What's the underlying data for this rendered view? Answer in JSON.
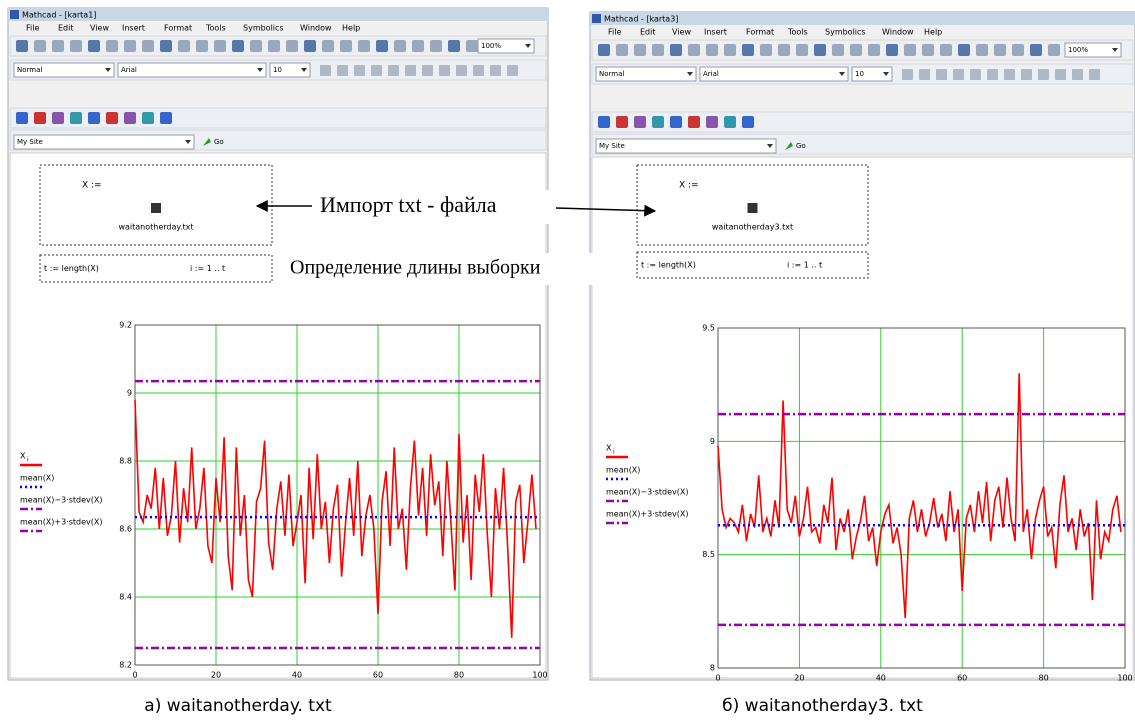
{
  "windows": [
    {
      "title": "Mathcad - [karta1]",
      "menu": [
        "File",
        "Edit",
        "View",
        "Insert",
        "Format",
        "Tools",
        "Symbolics",
        "Window",
        "Help"
      ],
      "style": "Normal",
      "font": "Arial",
      "font_size": "10",
      "zoom": "100%",
      "site": "My Site",
      "go": "Go",
      "assign": "X :=",
      "file": "waitanotherday.txt",
      "length_def": "t := length(X)",
      "range_def": "i := 1 .. t",
      "chart": {
        "type": "line",
        "xlim": [
          0,
          100
        ],
        "ylim": [
          8.2,
          9.2
        ],
        "xticks": [
          0,
          20,
          40,
          60,
          80,
          100
        ],
        "yticks": [
          8.2,
          8.4,
          8.6,
          8.8,
          9,
          9.2
        ],
        "grid": true,
        "series": [
          {
            "name": "X",
            "subscript": "i",
            "color": "#ff0000",
            "x": [
              0,
              1,
              2,
              3,
              4,
              5,
              6,
              7,
              8,
              9,
              10,
              11,
              12,
              13,
              14,
              15,
              16,
              17,
              18,
              19,
              20,
              21,
              22,
              23,
              24,
              25,
              26,
              27,
              28,
              29,
              30,
              31,
              32,
              33,
              34,
              35,
              36,
              37,
              38,
              39,
              40,
              41,
              42,
              43,
              44,
              45,
              46,
              47,
              48,
              49,
              50,
              51,
              52,
              53,
              54,
              55,
              56,
              57,
              58,
              59,
              60,
              61,
              62,
              63,
              64,
              65,
              66,
              67,
              68,
              69,
              70,
              71,
              72,
              73,
              74,
              75,
              76,
              77,
              78,
              79,
              80,
              81,
              82,
              83,
              84,
              85,
              86,
              87,
              88,
              89,
              90,
              91,
              92,
              93,
              94,
              95,
              96,
              97,
              98,
              99
            ],
            "values": [
              8.98,
              8.65,
              8.62,
              8.7,
              8.66,
              8.78,
              8.6,
              8.75,
              8.58,
              8.64,
              8.8,
              8.56,
              8.72,
              8.62,
              8.84,
              8.6,
              8.66,
              8.78,
              8.55,
              8.5,
              8.75,
              8.62,
              8.87,
              8.52,
              8.42,
              8.84,
              8.58,
              8.7,
              8.45,
              8.4,
              8.68,
              8.72,
              8.86,
              8.56,
              8.48,
              8.66,
              8.74,
              8.58,
              8.76,
              8.55,
              8.62,
              8.7,
              8.44,
              8.78,
              8.57,
              8.82,
              8.6,
              8.68,
              8.5,
              8.66,
              8.73,
              8.46,
              8.62,
              8.75,
              8.58,
              8.8,
              8.52,
              8.64,
              8.7,
              8.6,
              8.35,
              8.68,
              8.77,
              8.55,
              8.84,
              8.6,
              8.66,
              8.48,
              8.72,
              8.86,
              8.64,
              8.78,
              8.58,
              8.82,
              8.67,
              8.74,
              8.52,
              8.8,
              8.62,
              8.42,
              8.88,
              8.56,
              8.7,
              8.45,
              8.76,
              8.65,
              8.82,
              8.58,
              8.4,
              8.72,
              8.6,
              8.78,
              8.55,
              8.28,
              8.68,
              8.73,
              8.5,
              8.62,
              8.76,
              8.6
            ]
          },
          {
            "name": "mean(X)",
            "color": "#0000ff",
            "dash": "dot",
            "x": [
              0,
              100
            ],
            "values": [
              8.635,
              8.635
            ]
          },
          {
            "name": "mean(X)−3·stdev(X)",
            "color": "#9900aa",
            "dash": "dashdot",
            "x": [
              0,
              100
            ],
            "values": [
              8.25,
              8.25
            ]
          },
          {
            "name": "mean(X)+3·stdev(X)",
            "color": "#9900aa",
            "dash": "dashdot",
            "x": [
              0,
              100
            ],
            "values": [
              9.035,
              9.035
            ]
          }
        ]
      },
      "caption": "а) waitanotherday. txt"
    },
    {
      "title": "Mathcad - [karta3]",
      "menu": [
        "File",
        "Edit",
        "View",
        "Insert",
        "Format",
        "Tools",
        "Symbolics",
        "Window",
        "Help"
      ],
      "style": "Normal",
      "font": "Arial",
      "font_size": "10",
      "zoom": "100%",
      "site": "My Site",
      "go": "Go",
      "assign": "X :=",
      "file": "waitanotherday3.txt",
      "length_def": "t := length(X)",
      "range_def": "i := 1 .. t",
      "chart": {
        "type": "line",
        "xlim": [
          0,
          100
        ],
        "ylim": [
          8,
          9.5
        ],
        "xticks": [
          0,
          20,
          40,
          60,
          80,
          100
        ],
        "yticks": [
          8,
          8.5,
          9,
          9.5
        ],
        "grid": true,
        "series": [
          {
            "name": "X",
            "subscript": "i",
            "color": "#ff0000",
            "x": [
              0,
              1,
              2,
              3,
              4,
              5,
              6,
              7,
              8,
              9,
              10,
              11,
              12,
              13,
              14,
              15,
              16,
              17,
              18,
              19,
              20,
              21,
              22,
              23,
              24,
              25,
              26,
              27,
              28,
              29,
              30,
              31,
              32,
              33,
              34,
              35,
              36,
              37,
              38,
              39,
              40,
              41,
              42,
              43,
              44,
              45,
              46,
              47,
              48,
              49,
              50,
              51,
              52,
              53,
              54,
              55,
              56,
              57,
              58,
              59,
              60,
              61,
              62,
              63,
              64,
              65,
              66,
              67,
              68,
              69,
              70,
              71,
              72,
              73,
              74,
              75,
              76,
              77,
              78,
              79,
              80,
              81,
              82,
              83,
              84,
              85,
              86,
              87,
              88,
              89,
              90,
              91,
              92,
              93,
              94,
              95,
              96,
              97,
              98,
              99
            ],
            "values": [
              8.98,
              8.7,
              8.62,
              8.66,
              8.64,
              8.6,
              8.72,
              8.56,
              8.68,
              8.62,
              8.85,
              8.6,
              8.66,
              8.58,
              8.74,
              8.62,
              9.18,
              8.7,
              8.64,
              8.76,
              8.58,
              8.66,
              8.8,
              8.6,
              8.62,
              8.55,
              8.72,
              8.64,
              8.84,
              8.52,
              8.66,
              8.6,
              8.7,
              8.48,
              8.58,
              8.65,
              8.76,
              8.56,
              8.62,
              8.45,
              8.6,
              8.68,
              8.72,
              8.55,
              8.62,
              8.5,
              8.22,
              8.66,
              8.74,
              8.6,
              8.7,
              8.58,
              8.64,
              8.75,
              8.62,
              8.68,
              8.56,
              8.78,
              8.6,
              8.7,
              8.34,
              8.66,
              8.72,
              8.6,
              8.78,
              8.64,
              8.82,
              8.56,
              8.74,
              8.8,
              8.62,
              8.84,
              8.66,
              8.56,
              9.3,
              8.6,
              8.7,
              8.48,
              8.66,
              8.74,
              8.8,
              8.58,
              8.62,
              8.44,
              8.72,
              8.85,
              8.6,
              8.66,
              8.52,
              8.7,
              8.58,
              8.64,
              8.3,
              8.74,
              8.48,
              8.6,
              8.56,
              8.7,
              8.76,
              8.6
            ]
          },
          {
            "name": "mean(X)",
            "color": "#0000ff",
            "dash": "dot",
            "x": [
              0,
              100
            ],
            "values": [
              8.63,
              8.63
            ]
          },
          {
            "name": "mean(X)−3·stdev(X)",
            "color": "#9900aa",
            "dash": "dashdot",
            "x": [
              0,
              100
            ],
            "values": [
              8.19,
              8.19
            ]
          },
          {
            "name": "mean(X)+3·stdev(X)",
            "color": "#9900aa",
            "dash": "dashdot",
            "x": [
              0,
              100
            ],
            "values": [
              9.12,
              9.12
            ]
          }
        ]
      },
      "caption": "б) waitanotherday3. txt"
    }
  ],
  "annotations": {
    "import": "Импорт txt - файла",
    "length": "Определение длины выборки"
  }
}
